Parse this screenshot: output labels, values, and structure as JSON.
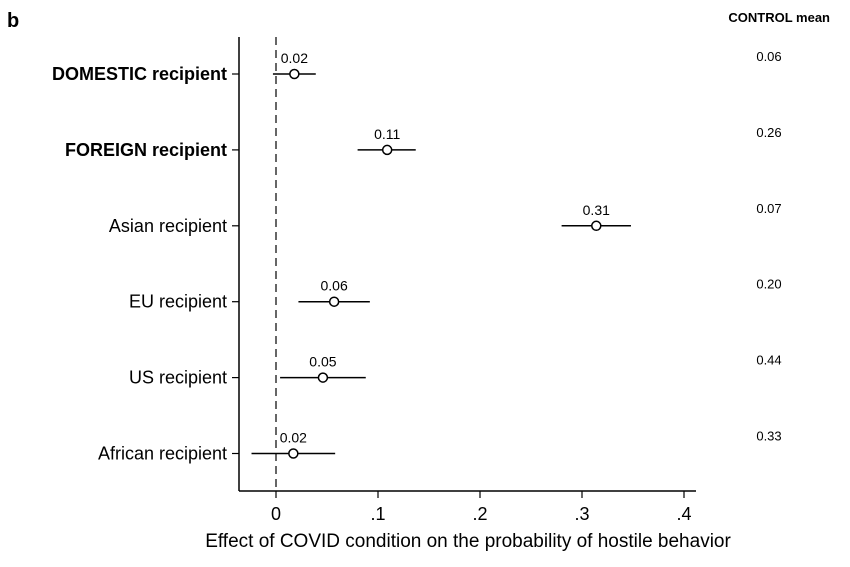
{
  "panel_label": "b",
  "control_header": "CONTROL mean",
  "chart_data": {
    "type": "scatter",
    "subtype": "coefficient-plot",
    "title": "",
    "xlabel": "Effect of COVID condition on the probability of hostile behavior",
    "ylabel": "",
    "xlim": [
      -0.036,
      0.41
    ],
    "xticks": [
      0,
      0.1,
      0.2,
      0.3,
      0.4
    ],
    "xtick_labels": [
      "0",
      ".1",
      ".2",
      ".3",
      ".4"
    ],
    "reference_line": {
      "x": 0,
      "style": "dashed"
    },
    "grid": false,
    "categories": [
      "DOMESTIC recipient",
      "FOREIGN recipient",
      "Asian recipient",
      "EU recipient",
      "US recipient",
      "African recipient"
    ],
    "bold_categories": [
      "DOMESTIC recipient",
      "FOREIGN recipient"
    ],
    "series": [
      {
        "estimates": [
          0.018,
          0.109,
          0.314,
          0.057,
          0.046,
          0.017
        ],
        "ci_low": [
          -0.003,
          0.08,
          0.28,
          0.022,
          0.004,
          -0.024
        ],
        "ci_high": [
          0.039,
          0.137,
          0.348,
          0.092,
          0.088,
          0.058
        ],
        "point_labels": [
          "0.02",
          "0.11",
          "0.31",
          "0.06",
          "0.05",
          "0.02"
        ]
      }
    ],
    "control_means": [
      "0.06",
      "0.26",
      "0.07",
      "0.20",
      "0.44",
      "0.33"
    ]
  }
}
